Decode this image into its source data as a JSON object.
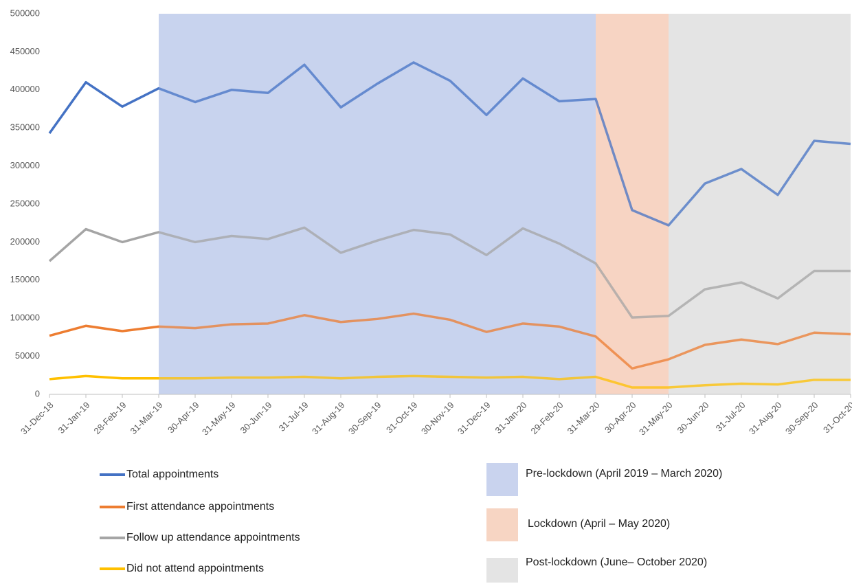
{
  "chart_data": {
    "type": "line",
    "categories": [
      "31-Dec-18",
      "31-Jan-19",
      "28-Feb-19",
      "31-Mar-19",
      "30-Apr-19",
      "31-May-19",
      "30-Jun-19",
      "31-Jul-19",
      "31-Aug-19",
      "30-Sep-19",
      "31-Oct-19",
      "30-Nov-19",
      "31-Dec-19",
      "31-Jan-20",
      "29-Feb-20",
      "31-Mar-20",
      "30-Apr-20",
      "31-May-20",
      "30-Jun-20",
      "31-Jul-20",
      "31-Aug-20",
      "30-Sep-20",
      "31-Oct-20"
    ],
    "series": [
      {
        "name": "Total appointments",
        "color": "#4472c4",
        "values": [
          343000,
          410000,
          378000,
          402000,
          384000,
          400000,
          396000,
          433000,
          377000,
          408000,
          436000,
          412000,
          367000,
          415000,
          385000,
          388000,
          242000,
          222000,
          277000,
          296000,
          262000,
          333000,
          329000
        ]
      },
      {
        "name": "First attendance appointments",
        "color": "#ed7d31",
        "values": [
          77000,
          90000,
          83000,
          89000,
          87000,
          92000,
          93000,
          104000,
          95000,
          99000,
          106000,
          98000,
          82000,
          93000,
          89000,
          76000,
          34000,
          46000,
          65000,
          72000,
          66000,
          81000,
          79000
        ]
      },
      {
        "name": "Follow up attendance appointments",
        "color": "#a5a5a5",
        "values": [
          175000,
          217000,
          200000,
          213000,
          200000,
          208000,
          204000,
          219000,
          186000,
          202000,
          216000,
          210000,
          183000,
          218000,
          198000,
          172000,
          101000,
          103000,
          138000,
          147000,
          126000,
          162000,
          162000
        ]
      },
      {
        "name": "Did not attend appointments",
        "color": "#ffc000",
        "values": [
          20000,
          24000,
          21000,
          21000,
          21000,
          22000,
          22000,
          23000,
          21000,
          23000,
          24000,
          23000,
          22000,
          23000,
          20000,
          23000,
          9000,
          9000,
          12000,
          14000,
          13000,
          19000,
          19000
        ]
      }
    ],
    "regions": [
      {
        "label": "Pre-lockdown (April 2019 – March 2020)",
        "start": "31-Mar-19",
        "end": "31-Mar-20",
        "color": "#c9d3ee"
      },
      {
        "label": "Lockdown (April – May 2020)",
        "start": "31-Mar-20",
        "end": "31-May-20",
        "color": "#f7d5c3"
      },
      {
        "label": "Post-lockdown (June– October 2020)",
        "start": "31-May-20",
        "end": "31-Oct-20",
        "color": "#e4e4e4"
      }
    ],
    "ylim": [
      0,
      500000
    ],
    "yticks": [
      0,
      50000,
      100000,
      150000,
      200000,
      250000,
      300000,
      350000,
      400000,
      450000,
      500000
    ],
    "grid": false
  }
}
